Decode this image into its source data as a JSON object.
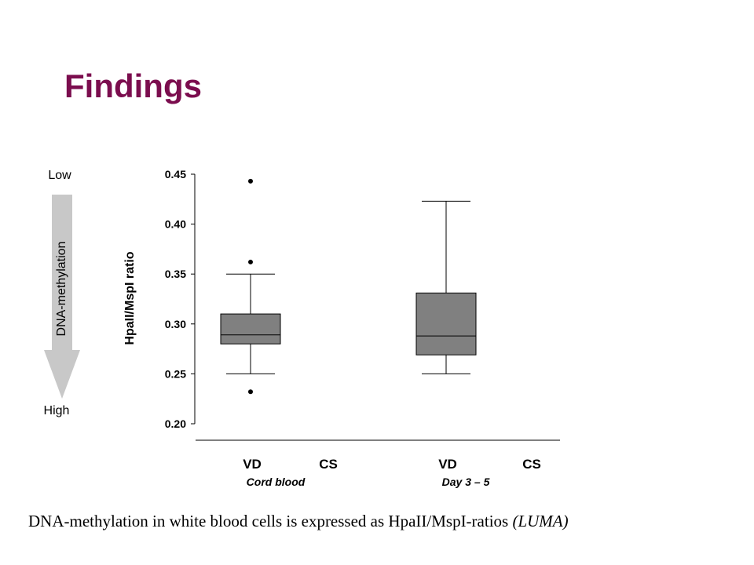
{
  "slide": {
    "title": "Findings",
    "caption_main": "DNA-methylation in white blood cells is expressed as HpaII/MspI-ratios ",
    "caption_italic": "(LUMA)"
  },
  "side_indicator": {
    "top_label": "Low",
    "bottom_label": "High",
    "arrow_label": "DNA-methylation",
    "arrow_color": "#c8c8c8"
  },
  "chart_data": {
    "type": "box",
    "ylabel": "HpaII/MspI ratio",
    "ylim": [
      0.2,
      0.45
    ],
    "yticks": [
      "0.45",
      "0.40",
      "0.35",
      "0.30",
      "0.25",
      "0.20"
    ],
    "categories": [
      "VD",
      "CS",
      "VD",
      "CS"
    ],
    "groups": [
      "Cord blood",
      "Day 3 – 5"
    ],
    "box_color": "#808080",
    "boxes": [
      {
        "category": "VD",
        "group": "Cord blood",
        "whisker_low": 0.25,
        "q1": 0.28,
        "median": 0.289,
        "q3": 0.31,
        "whisker_high": 0.35,
        "outliers": [
          0.443,
          0.362,
          0.232
        ]
      },
      {
        "category": "VD",
        "group": "Day 3 – 5",
        "whisker_low": 0.25,
        "q1": 0.269,
        "median": 0.288,
        "q3": 0.331,
        "whisker_high": 0.423,
        "outliers": []
      }
    ]
  }
}
